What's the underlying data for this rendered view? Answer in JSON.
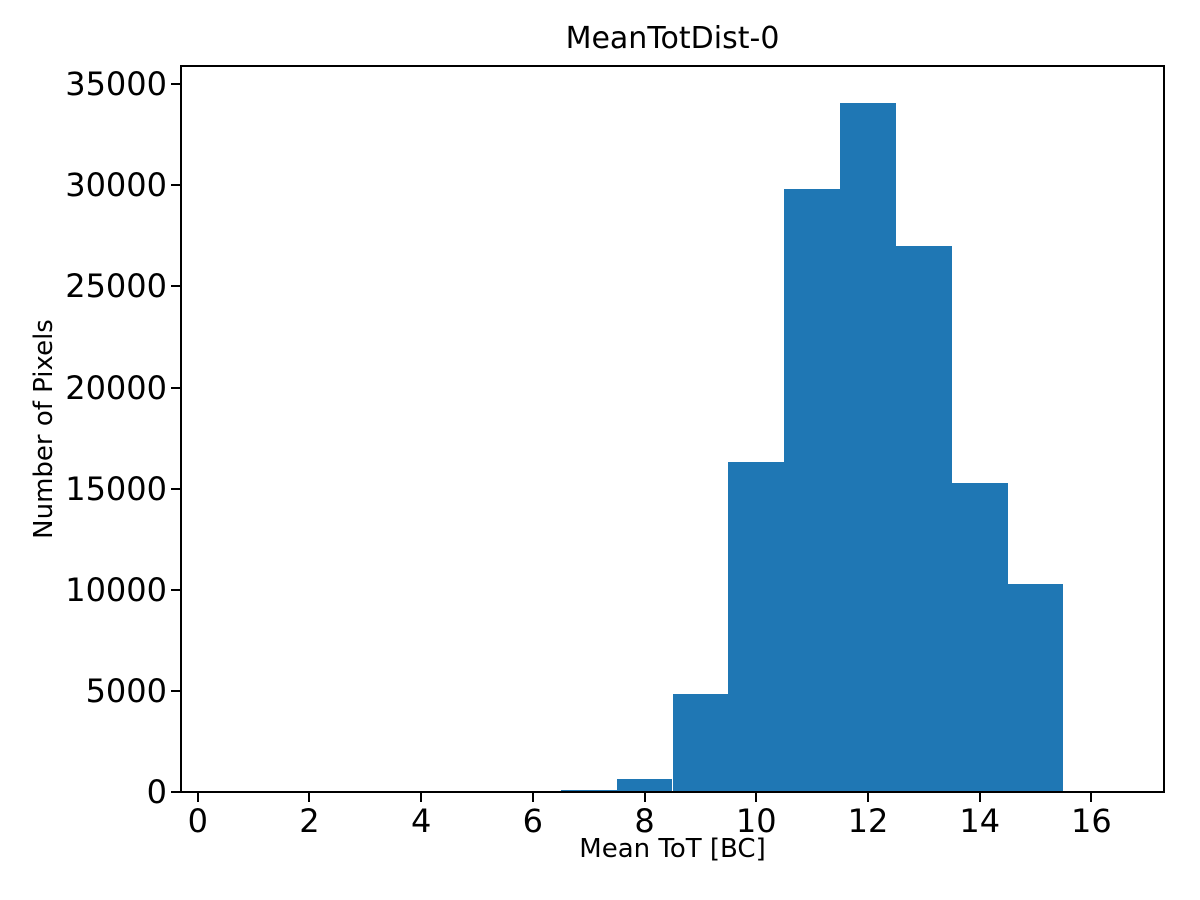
{
  "chart_data": {
    "type": "bar",
    "subtype": "histogram",
    "title": "MeanTotDist-0",
    "xlabel": "Mean ToT [BC]",
    "ylabel": "Number of Pixels",
    "bin_edges": [
      0.5,
      1.5,
      2.5,
      3.5,
      4.5,
      5.5,
      6.5,
      7.5,
      8.5,
      9.5,
      10.5,
      11.5,
      12.5,
      13.5,
      14.5,
      15.5,
      16.5
    ],
    "counts": [
      0,
      0,
      0,
      0,
      0,
      0,
      80,
      650,
      4850,
      16300,
      29800,
      34050,
      27000,
      15300,
      10300,
      0
    ],
    "xticks": [
      0,
      2,
      4,
      6,
      8,
      10,
      12,
      14,
      16
    ],
    "yticks": [
      0,
      5000,
      10000,
      15000,
      20000,
      25000,
      30000,
      35000
    ],
    "xlim": [
      -0.3,
      17.3
    ],
    "ylim": [
      0,
      35900
    ],
    "bar_color": "#1f77b4",
    "axis_color": "#000000",
    "background_color": "#ffffff",
    "grid": false,
    "legend": null
  }
}
